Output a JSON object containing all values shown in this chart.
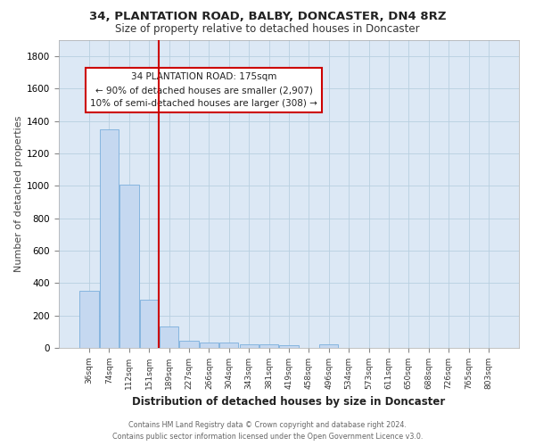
{
  "title": "34, PLANTATION ROAD, BALBY, DONCASTER, DN4 8RZ",
  "subtitle": "Size of property relative to detached houses in Doncaster",
  "xlabel": "Distribution of detached houses by size in Doncaster",
  "ylabel": "Number of detached properties",
  "footer1": "Contains HM Land Registry data © Crown copyright and database right 2024.",
  "footer2": "Contains public sector information licensed under the Open Government Licence v3.0.",
  "categories": [
    "36sqm",
    "74sqm",
    "112sqm",
    "151sqm",
    "189sqm",
    "227sqm",
    "266sqm",
    "304sqm",
    "343sqm",
    "381sqm",
    "419sqm",
    "458sqm",
    "496sqm",
    "534sqm",
    "573sqm",
    "611sqm",
    "650sqm",
    "688sqm",
    "726sqm",
    "765sqm",
    "803sqm"
  ],
  "values": [
    355,
    1350,
    1010,
    295,
    130,
    45,
    35,
    35,
    20,
    20,
    15,
    2,
    20,
    0,
    0,
    0,
    0,
    0,
    0,
    0,
    0
  ],
  "bar_color": "#c5d8f0",
  "bar_edge_color": "#7aaedc",
  "plot_bg": "#dce8f5",
  "grid_color": "#b8cfe0",
  "annotation_line1": "34 PLANTATION ROAD: 175sqm",
  "annotation_line2": "← 90% of detached houses are smaller (2,907)",
  "annotation_line3": "10% of semi-detached houses are larger (308) →",
  "annotation_box_facecolor": "#ffffff",
  "annotation_box_edgecolor": "#cc0000",
  "vline_color": "#cc0000",
  "vline_x": 3.5,
  "ylim": [
    0,
    1900
  ],
  "yticks": [
    0,
    200,
    400,
    600,
    800,
    1000,
    1200,
    1400,
    1600,
    1800
  ]
}
